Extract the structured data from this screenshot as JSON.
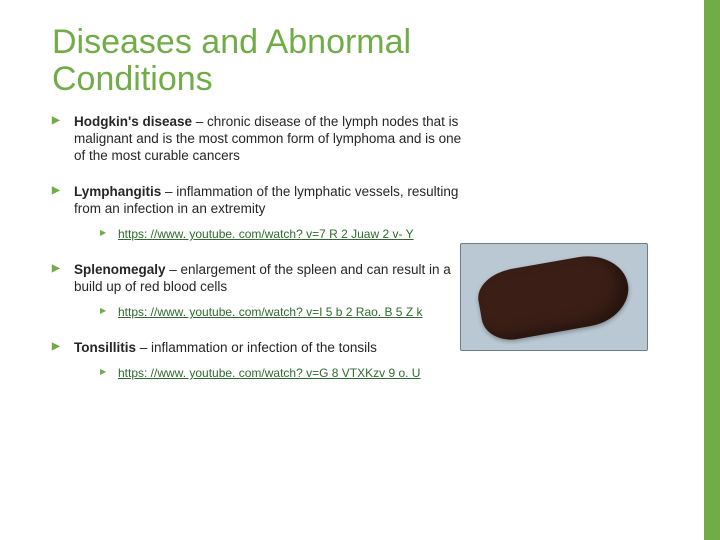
{
  "accent_color": "#70ad47",
  "link_color": "#2e6b2e",
  "title": "Diseases and Abnormal Conditions",
  "bullets": [
    {
      "term": "Hodgkin's disease",
      "definition": " – chronic disease of the lymph nodes that is malignant and is the most common form of lymphoma and is one of the most curable cancers",
      "links": []
    },
    {
      "term": "Lymphangitis",
      "definition": " – inflammation of the lymphatic vessels, resulting from an infection in an extremity",
      "links": [
        "https: //www. youtube. com/watch? v=7 R 2 Juaw 2 v- Y"
      ]
    },
    {
      "term": "Splenomegaly",
      "definition": " – enlargement of the spleen and can result in a build up of red blood cells",
      "links": [
        "https: //www. youtube. com/watch? v=I 5 b 2 Rao. B 5 Z k"
      ]
    },
    {
      "term": "Tonsillitis",
      "definition": " – inflammation or infection of the tonsils",
      "links": [
        "https: //www. youtube. com/watch? v=G 8 VTXKzv 9 o. U"
      ]
    }
  ],
  "image_alt": "Enlarged spleen photograph"
}
